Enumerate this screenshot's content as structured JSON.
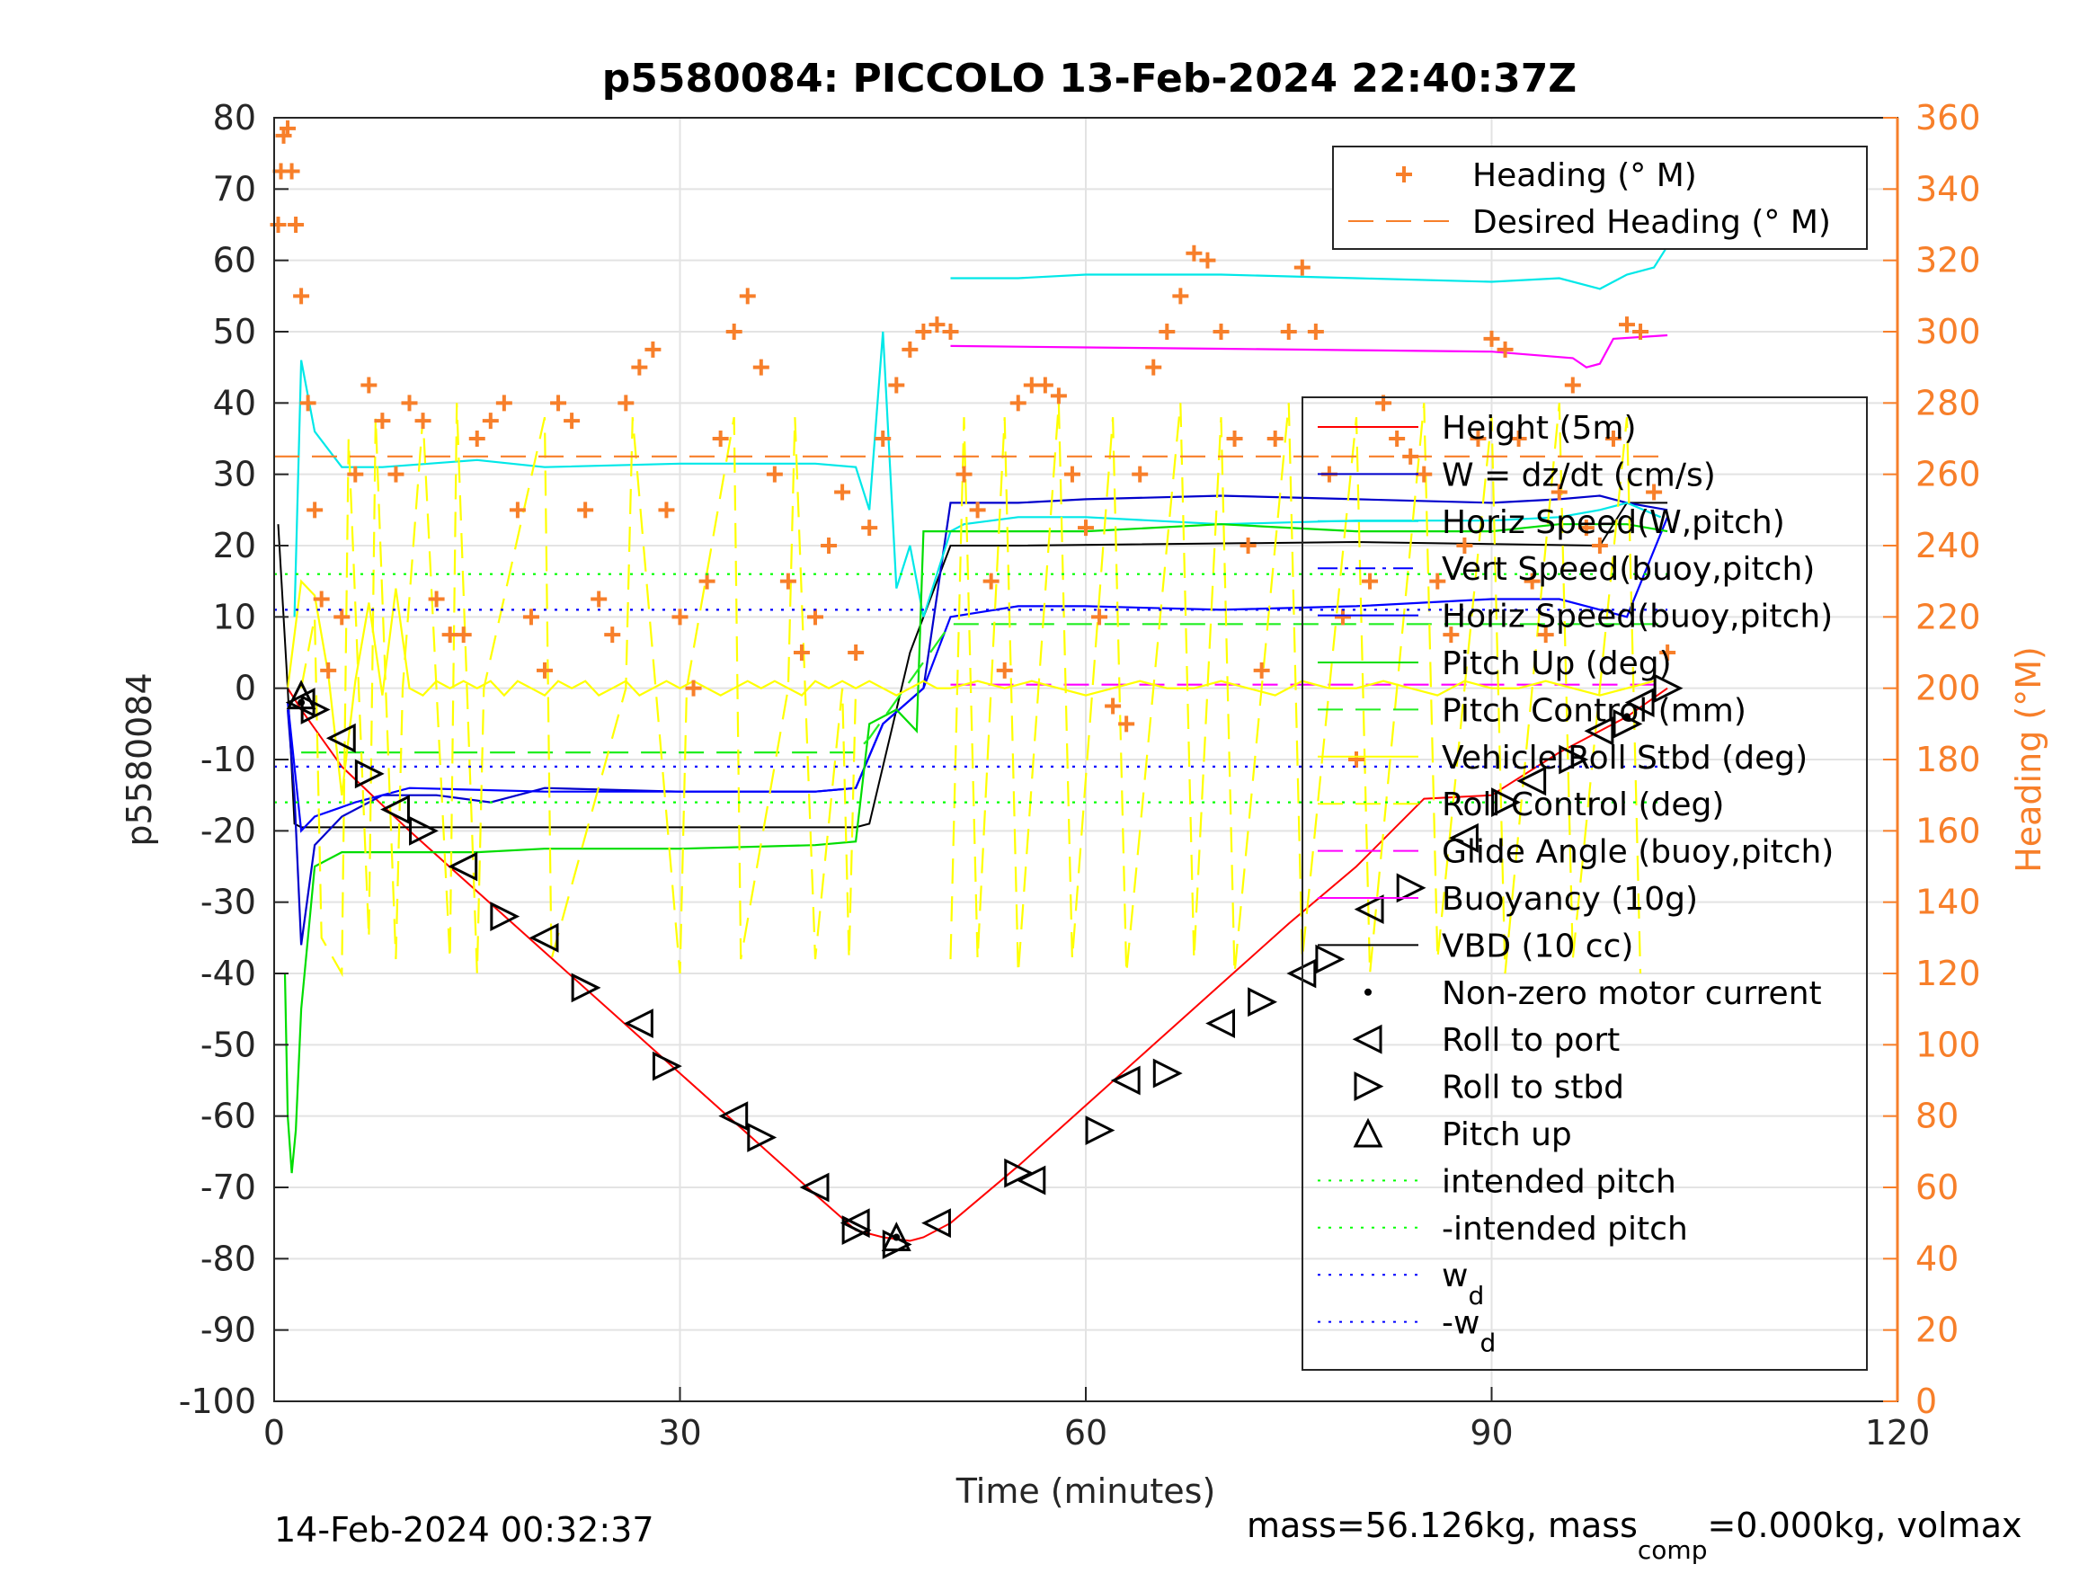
{
  "chart_data": {
    "type": "line",
    "title": "p5580084: PICCOLO 13-Feb-2024 22:40:37Z",
    "xlabel": "Time (minutes)",
    "ylabel": "p5580084",
    "y2label": "Heading (°M)",
    "xlim": [
      0,
      120
    ],
    "ylim": [
      -100,
      80
    ],
    "y2lim": [
      0,
      360
    ],
    "xticks": [
      0,
      30,
      60,
      90,
      120
    ],
    "yticks": [
      -100,
      -90,
      -80,
      -70,
      -60,
      -50,
      -40,
      -30,
      -20,
      -10,
      0,
      10,
      20,
      30,
      40,
      50,
      60,
      70,
      80
    ],
    "y2ticks": [
      0,
      20,
      40,
      60,
      80,
      100,
      120,
      140,
      160,
      180,
      200,
      220,
      240,
      260,
      280,
      300,
      320,
      340,
      360
    ],
    "grid": true,
    "footer_left": "14-Feb-2024 00:32:37",
    "footer_right_parts": [
      "mass=56.126kg, mass",
      "comp",
      "=0.000kg, volmax"
    ],
    "colors": {
      "heading": "#f77f2a",
      "height": "#ff0000",
      "w": "#0000cc",
      "horiz_w": "#00e8e8",
      "vert_buoy": "#0000ff",
      "horiz_buoy": "#0000ff",
      "pitch_up": "#00dd00",
      "pitch_control": "#22ee22",
      "roll": "#ffff00",
      "roll_control": "#ffff00",
      "glide": "#ff00ff",
      "buoyancy": "#ff00ff",
      "vbd": "#000000",
      "intended": "#00ff00",
      "wd": "#0000ff"
    },
    "legend_top": [
      {
        "label": "Heading (° M)",
        "marker": "plus"
      },
      {
        "label": "Desired Heading (° M)",
        "style": "dashed"
      }
    ],
    "legend_main": [
      {
        "label": "Height (5m)",
        "color": "#ff0000",
        "style": "solid"
      },
      {
        "label": "W = dz/dt (cm/s)",
        "color": "#0000cc",
        "style": "solid"
      },
      {
        "label": "Horiz Speed(W,pitch)",
        "color": "#00e8e8",
        "style": "solid"
      },
      {
        "label": "Vert Speed(buoy,pitch)",
        "color": "#0000ff",
        "style": "dashdot"
      },
      {
        "label": "Horiz Speed(buoy,pitch)",
        "color": "#0000ff",
        "style": "solid"
      },
      {
        "label": "Pitch Up (deg)",
        "color": "#00dd00",
        "style": "solid"
      },
      {
        "label": "Pitch Control (mm)",
        "color": "#22ee22",
        "style": "dashed"
      },
      {
        "label": "Vehicle Roll Stbd (deg)",
        "color": "#ffff00",
        "style": "solid"
      },
      {
        "label": "Roll Control (deg)",
        "color": "#ffff00",
        "style": "dashed"
      },
      {
        "label": "Glide Angle (buoy,pitch)",
        "color": "#ff00ff",
        "style": "dashed"
      },
      {
        "label": "Buoyancy (10g)",
        "color": "#ff00ff",
        "style": "solid"
      },
      {
        "label": "VBD (10 cc)",
        "color": "#000000",
        "style": "solid"
      },
      {
        "label": "Non-zero motor current",
        "color": "#000000",
        "style": "dot"
      },
      {
        "label": "Roll to port",
        "color": "#000000",
        "style": "tri-left"
      },
      {
        "label": "Roll to stbd",
        "color": "#000000",
        "style": "tri-right"
      },
      {
        "label": "Pitch up",
        "color": "#000000",
        "style": "tri-up"
      },
      {
        "label": "intended pitch",
        "color": "#00ff00",
        "style": "dotted"
      },
      {
        "label": "-intended pitch",
        "color": "#00ff00",
        "style": "dotted"
      },
      {
        "label": "w",
        "sub": "d",
        "color": "#0000ff",
        "style": "dotted"
      },
      {
        "label": "-w",
        "sub": "d",
        "color": "#0000ff",
        "style": "dotted"
      }
    ],
    "series": [
      {
        "key": "height",
        "axis": "left",
        "x": [
          1,
          2,
          5,
          10,
          15,
          20,
          25,
          30,
          35,
          40,
          43,
          45,
          47,
          48,
          50,
          55,
          60,
          65,
          70,
          75,
          80,
          85,
          90,
          95,
          100,
          103
        ],
        "y": [
          0,
          -3,
          -11,
          -20,
          -28.5,
          -37,
          -45.5,
          -54,
          -62.5,
          -71,
          -76,
          -77,
          -77.5,
          -77,
          -75,
          -67,
          -58.5,
          -50,
          -41.5,
          -33,
          -25,
          -15.5,
          -15,
          -9,
          -4,
          0
        ]
      },
      {
        "key": "vbd",
        "axis": "left",
        "x": [
          0.3,
          1,
          1.5,
          2,
          43,
          44,
          47,
          50,
          55,
          80,
          98,
          100,
          103
        ],
        "y": [
          23,
          0,
          -19,
          -19.5,
          -19.5,
          -19,
          5,
          20,
          20,
          20.5,
          20,
          26,
          26
        ]
      },
      {
        "key": "w",
        "axis": "left",
        "x": [
          1,
          1.5,
          2,
          3,
          5,
          8,
          12,
          16,
          20,
          30,
          40,
          43,
          45,
          48,
          50,
          55,
          60,
          70,
          80,
          90,
          95,
          98,
          100,
          103
        ],
        "y": [
          -3,
          -15,
          -36,
          -22,
          -18,
          -15,
          -15,
          -16,
          -14,
          -14.5,
          -14.5,
          -14,
          -5,
          0,
          26,
          26,
          26.5,
          27,
          26.5,
          26,
          26.5,
          27,
          26,
          25
        ]
      },
      {
        "key": "horiz_buoy",
        "axis": "left",
        "x": [
          1,
          2,
          3,
          6,
          10,
          20,
          30,
          40,
          43,
          45,
          48,
          50,
          55,
          60,
          70,
          80,
          90,
          95,
          100,
          103
        ],
        "y": [
          -2,
          -20,
          -18,
          -16,
          -14,
          -14.5,
          -14.5,
          -14.5,
          -14,
          -5,
          0,
          10,
          11.5,
          11.5,
          11,
          11.5,
          12.5,
          12.5,
          10,
          24
        ]
      },
      {
        "key": "horiz_w",
        "axis": "left",
        "x": [
          1.5,
          2,
          3,
          5,
          8,
          15,
          20,
          30,
          40,
          43,
          44,
          45,
          46,
          47,
          48,
          50,
          51,
          55,
          60,
          70,
          80,
          90,
          95,
          98,
          100,
          102.5
        ],
        "y": [
          10,
          46,
          36,
          31,
          31,
          32,
          31,
          31.5,
          31.5,
          31,
          25,
          50,
          14,
          20,
          10,
          22,
          23,
          24,
          24,
          23,
          23.5,
          23.5,
          24,
          25,
          26,
          24
        ]
      },
      {
        "key": "horiz_w_up",
        "axis": "left",
        "x": [
          50,
          55,
          60,
          70,
          80,
          90,
          95,
          98,
          100,
          102,
          103
        ],
        "y": [
          57.5,
          57.5,
          58,
          58,
          57.5,
          57,
          57.5,
          56,
          58,
          59,
          62
        ]
      },
      {
        "key": "pitch_up",
        "axis": "left",
        "x": [
          0.8,
          1,
          1.3,
          1.6,
          2,
          3,
          5,
          8,
          15,
          20,
          30,
          40,
          43,
          44,
          46,
          47.5,
          48,
          50,
          55,
          60,
          70,
          80,
          90,
          95,
          100,
          103
        ],
        "y": [
          -40,
          -60,
          -68,
          -62,
          -45,
          -25,
          -23,
          -23,
          -23,
          -22.5,
          -22.5,
          -22,
          -21.5,
          -5,
          -3,
          -6,
          22,
          22,
          22,
          22,
          23,
          22,
          22,
          23,
          23,
          22
        ]
      },
      {
        "key": "pitch_control",
        "axis": "left",
        "x": [
          2,
          40,
          43,
          44,
          50,
          100,
          103
        ],
        "y": [
          -9,
          -9,
          -9,
          -7,
          9,
          9,
          9
        ]
      },
      {
        "key": "buoyancy",
        "axis": "left",
        "x": [
          50,
          60,
          70,
          80,
          90,
          96,
          97,
          98,
          99,
          103
        ],
        "y": [
          48,
          47.8,
          47.6,
          47.4,
          47.2,
          46.3,
          45,
          45.5,
          49,
          49.5
        ]
      },
      {
        "key": "glide",
        "axis": "left",
        "x": [
          50,
          103
        ],
        "y": [
          0.5,
          0.5
        ]
      },
      {
        "key": "roll",
        "axis": "left",
        "x": [
          1,
          2,
          3,
          4,
          5,
          6,
          7,
          8,
          9,
          10,
          11,
          12,
          13,
          14,
          15,
          16,
          17,
          18,
          19,
          20,
          21,
          22,
          23,
          24,
          25,
          26,
          27,
          28,
          29,
          30,
          31,
          32,
          33,
          34,
          35,
          36,
          37,
          38,
          39,
          40,
          41,
          42,
          43,
          44,
          45,
          46,
          47,
          48,
          49,
          50,
          52,
          54,
          56,
          58,
          60,
          62,
          64,
          66,
          68,
          70,
          72,
          74,
          76,
          78,
          80,
          82,
          84,
          86,
          88,
          90,
          92,
          94,
          96,
          98,
          100,
          102
        ],
        "y": [
          0,
          15,
          13,
          2,
          -15,
          1,
          12,
          -1,
          14,
          0,
          -1,
          1,
          0,
          1,
          0,
          1,
          -1,
          1,
          0,
          -1,
          1,
          0,
          1,
          -1,
          0,
          1,
          -1,
          0,
          1,
          0,
          1,
          0,
          -1,
          0,
          1,
          0,
          1,
          0,
          -1,
          1,
          0,
          1,
          0,
          1,
          0,
          -1,
          0,
          1,
          0,
          0,
          1,
          0,
          1,
          0,
          -1,
          0,
          1,
          0,
          0,
          1,
          0,
          -1,
          1,
          0,
          0,
          1,
          0,
          -1,
          1,
          0,
          0,
          1,
          0,
          -1,
          0,
          1
        ]
      },
      {
        "key": "roll_control",
        "axis": "left",
        "x": [
          2,
          3,
          3.5,
          5,
          5.5,
          7,
          7.5,
          9,
          9.5,
          11,
          13,
          13.5,
          15,
          15.5,
          20,
          20.5,
          26,
          26.5,
          30,
          30.5,
          34,
          34.5,
          38,
          38.5,
          40,
          42,
          42.5,
          43
        ],
        "y": [
          0,
          10,
          -35,
          -40,
          35,
          -35,
          38,
          -38,
          0,
          38,
          -38,
          40,
          -40,
          0,
          38,
          -38,
          0,
          38,
          -40,
          0,
          38,
          -38,
          0,
          38,
          -38,
          0,
          -38,
          0
        ]
      },
      {
        "key": "roll_control_2",
        "axis": "left",
        "x": [
          50,
          51,
          52,
          54,
          55,
          58,
          59,
          62,
          63,
          67,
          68,
          70,
          71,
          75,
          76,
          80,
          81,
          85,
          86,
          90,
          91,
          95,
          96,
          100,
          101
        ],
        "y": [
          -38,
          38,
          -38,
          38,
          -40,
          40,
          -38,
          38,
          -40,
          40,
          -38,
          38,
          -40,
          40,
          -38,
          38,
          -40,
          40,
          -38,
          38,
          -40,
          40,
          -38,
          38,
          -40
        ]
      },
      {
        "key": "heading",
        "axis": "right",
        "marker": "plus",
        "x": [
          0.3,
          0.5,
          0.7,
          1,
          1.3,
          1.6,
          2,
          2.5,
          3,
          3.5,
          4,
          5,
          6,
          7,
          8,
          9,
          10,
          11,
          12,
          13,
          14,
          15,
          16,
          17,
          18,
          19,
          20,
          21,
          22,
          23,
          24,
          25,
          26,
          27,
          28,
          29,
          30,
          31,
          32,
          33,
          34,
          35,
          36,
          37,
          38,
          39,
          40,
          41,
          42,
          43,
          44,
          45,
          46,
          47,
          48,
          49,
          50,
          51,
          52,
          53,
          54,
          55,
          56,
          57,
          58,
          59,
          60,
          61,
          62,
          63,
          64,
          65,
          66,
          67,
          68,
          69,
          70,
          71,
          72,
          73,
          74,
          75,
          76,
          77,
          78,
          79,
          80,
          81,
          82,
          83,
          84,
          85,
          86,
          87,
          88,
          89,
          90,
          91,
          92,
          93,
          94,
          95,
          96,
          97,
          98,
          99,
          100,
          101,
          102,
          103
        ],
        "y": [
          330,
          345,
          355,
          357,
          345,
          330,
          310,
          280,
          250,
          225,
          205,
          220,
          260,
          285,
          275,
          260,
          280,
          275,
          225,
          215,
          215,
          270,
          275,
          280,
          250,
          220,
          205,
          280,
          275,
          250,
          225,
          215,
          280,
          290,
          295,
          250,
          220,
          200,
          230,
          270,
          300,
          310,
          290,
          260,
          230,
          210,
          220,
          240,
          255,
          210,
          245,
          270,
          285,
          295,
          300,
          302,
          300,
          260,
          250,
          230,
          205,
          280,
          285,
          285,
          282,
          260,
          245,
          220,
          195,
          190,
          260,
          290,
          300,
          310,
          322,
          320,
          300,
          270,
          240,
          205,
          270,
          300,
          318,
          300,
          260,
          220,
          180,
          230,
          280,
          270,
          265,
          260,
          230,
          215,
          240,
          270,
          298,
          295,
          270,
          230,
          215,
          255,
          285,
          245,
          240,
          270,
          302,
          300,
          255,
          210
        ]
      },
      {
        "key": "desired_heading",
        "axis": "right",
        "style": "dashed",
        "x": [
          0,
          103
        ],
        "y": [
          265,
          265
        ]
      },
      {
        "key": "intended_pos",
        "axis": "left",
        "style": "dotted",
        "x": [
          0,
          103
        ],
        "y": [
          16,
          16
        ]
      },
      {
        "key": "intended_neg",
        "axis": "left",
        "style": "dotted",
        "x": [
          0,
          103
        ],
        "y": [
          -16,
          -16
        ]
      },
      {
        "key": "wd_pos",
        "axis": "left",
        "style": "dotted",
        "x": [
          0,
          103
        ],
        "y": [
          11,
          11
        ]
      },
      {
        "key": "wd_neg",
        "axis": "left",
        "style": "dotted",
        "x": [
          0,
          103
        ],
        "y": [
          -11,
          -11
        ]
      }
    ],
    "markers": {
      "roll_port": {
        "x": [
          2,
          5,
          9,
          14,
          20,
          27,
          34,
          40,
          43,
          49,
          56,
          63,
          70,
          76,
          81,
          88,
          93,
          98,
          101
        ],
        "y": [
          -2,
          -7,
          -17,
          -25,
          -35,
          -47,
          -60,
          -70,
          -75,
          -75,
          -69,
          -55,
          -47,
          -40,
          -31,
          -21,
          -13,
          -6,
          -2
        ]
      },
      "roll_stbd": {
        "x": [
          3,
          7,
          11,
          17,
          23,
          29,
          36,
          43,
          46,
          55,
          61,
          66,
          73,
          78,
          84,
          91,
          96,
          100,
          103
        ],
        "y": [
          -3,
          -12,
          -20,
          -32,
          -42,
          -53,
          -63,
          -76,
          -78,
          -68,
          -62,
          -54,
          -44,
          -38,
          -28,
          -16,
          -10,
          -5,
          0
        ]
      },
      "pitch_up": {
        "x": [
          2,
          46
        ],
        "y": [
          -1,
          -77
        ]
      },
      "motor": {
        "x": [
          2,
          46,
          100
        ],
        "y": [
          -2,
          -77,
          -4
        ]
      }
    }
  }
}
